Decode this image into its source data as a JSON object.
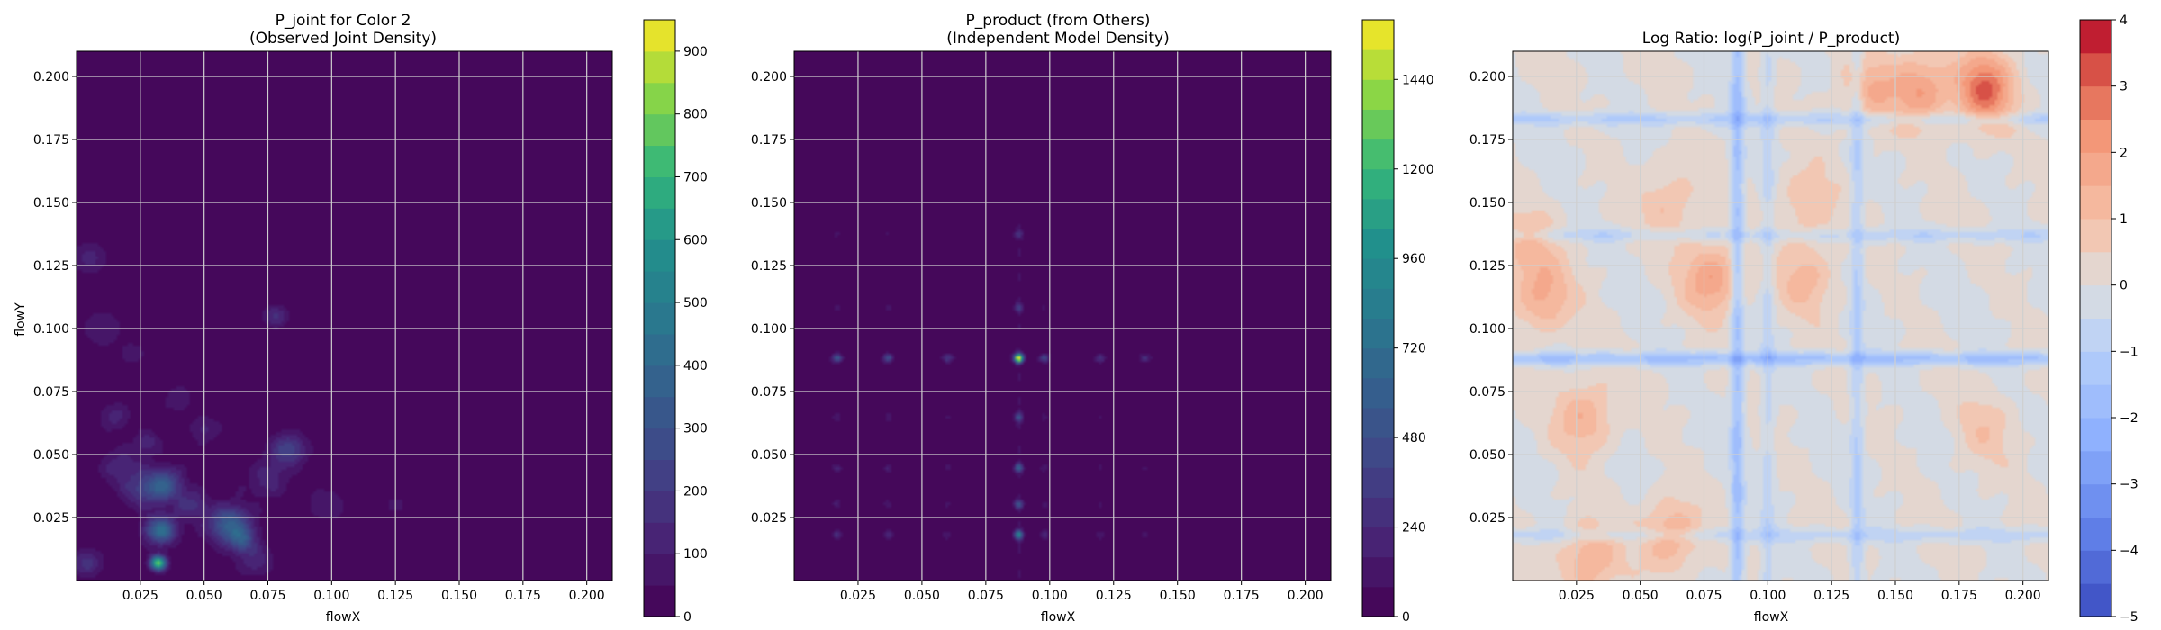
{
  "figure": {
    "background": "#ffffff"
  },
  "chart_data": [
    {
      "type": "heatmap",
      "title_line1": "P_joint for Color 2",
      "title_line2": "(Observed Joint Density)",
      "xlabel": "flowX",
      "ylabel": "flowY",
      "xlim": [
        0,
        0.21
      ],
      "ylim": [
        0,
        0.21
      ],
      "xticks": [
        "0.025",
        "0.050",
        "0.075",
        "0.100",
        "0.125",
        "0.150",
        "0.175",
        "0.200"
      ],
      "yticks": [
        "0.025",
        "0.050",
        "0.075",
        "0.100",
        "0.125",
        "0.150",
        "0.175",
        "0.200"
      ],
      "grid": true,
      "colormap": "viridis",
      "background_color": "#440154",
      "colorbar": {
        "min": 0,
        "max": 950,
        "ticks": [
          "0",
          "100",
          "200",
          "300",
          "400",
          "500",
          "600",
          "700",
          "800",
          "900"
        ],
        "tick_values": [
          0,
          100,
          200,
          300,
          400,
          500,
          600,
          700,
          800,
          900
        ],
        "levels": 19
      },
      "peaks": [
        {
          "x": 0.032,
          "y": 0.007,
          "value": 760
        },
        {
          "x": 0.033,
          "y": 0.02,
          "value": 420
        },
        {
          "x": 0.034,
          "y": 0.038,
          "value": 340
        },
        {
          "x": 0.06,
          "y": 0.022,
          "value": 360
        },
        {
          "x": 0.065,
          "y": 0.016,
          "value": 220
        },
        {
          "x": 0.045,
          "y": 0.03,
          "value": 160
        },
        {
          "x": 0.025,
          "y": 0.035,
          "value": 150
        },
        {
          "x": 0.018,
          "y": 0.045,
          "value": 140
        },
        {
          "x": 0.028,
          "y": 0.055,
          "value": 130
        },
        {
          "x": 0.015,
          "y": 0.065,
          "value": 120
        },
        {
          "x": 0.083,
          "y": 0.052,
          "value": 230
        },
        {
          "x": 0.075,
          "y": 0.04,
          "value": 120
        },
        {
          "x": 0.078,
          "y": 0.105,
          "value": 160
        },
        {
          "x": 0.004,
          "y": 0.007,
          "value": 170
        },
        {
          "x": 0.005,
          "y": 0.128,
          "value": 120
        },
        {
          "x": 0.01,
          "y": 0.1,
          "value": 100
        },
        {
          "x": 0.022,
          "y": 0.09,
          "value": 90
        },
        {
          "x": 0.05,
          "y": 0.06,
          "value": 110
        },
        {
          "x": 0.07,
          "y": 0.008,
          "value": 130
        },
        {
          "x": 0.098,
          "y": 0.03,
          "value": 90
        },
        {
          "x": 0.125,
          "y": 0.03,
          "value": 70
        },
        {
          "x": 0.04,
          "y": 0.072,
          "value": 90
        }
      ]
    },
    {
      "type": "heatmap",
      "title_line1": "P_product (from Others)",
      "title_line2": "(Independent Model Density)",
      "xlabel": "flowX",
      "ylabel": "",
      "xlim": [
        0,
        0.21
      ],
      "ylim": [
        0,
        0.21
      ],
      "xticks": [
        "0.025",
        "0.050",
        "0.075",
        "0.100",
        "0.125",
        "0.150",
        "0.175",
        "0.200"
      ],
      "yticks": [
        "0.025",
        "0.050",
        "0.075",
        "0.100",
        "0.125",
        "0.150",
        "0.175",
        "0.200"
      ],
      "grid": true,
      "colormap": "viridis",
      "background_color": "#440154",
      "colorbar": {
        "min": 0,
        "max": 1600,
        "ticks": [
          "0",
          "240",
          "480",
          "720",
          "960",
          "1200",
          "1440"
        ],
        "tick_values": [
          0,
          240,
          480,
          720,
          960,
          1200,
          1440
        ],
        "levels": 20
      },
      "peaks_x": [
        {
          "x": 0.017,
          "w": 0.4
        },
        {
          "x": 0.037,
          "w": 0.3
        },
        {
          "x": 0.06,
          "w": 0.25
        },
        {
          "x": 0.088,
          "w": 1.0
        },
        {
          "x": 0.098,
          "w": 0.2
        },
        {
          "x": 0.12,
          "w": 0.15
        },
        {
          "x": 0.137,
          "w": 0.12
        }
      ],
      "peaks_y": [
        {
          "y": 0.088,
          "w": 1.0
        },
        {
          "y": 0.018,
          "w": 0.6
        },
        {
          "y": 0.045,
          "w": 0.35
        },
        {
          "y": 0.065,
          "w": 0.3
        },
        {
          "y": 0.03,
          "w": 0.25
        },
        {
          "y": 0.108,
          "w": 0.18
        },
        {
          "y": 0.137,
          "w": 0.15
        }
      ]
    },
    {
      "type": "heatmap",
      "title_line1": "Log Ratio: log(P_joint / P_product)",
      "title_line2": "",
      "xlabel": "flowX",
      "ylabel": "",
      "xlim": [
        0,
        0.21
      ],
      "ylim": [
        0,
        0.21
      ],
      "xticks": [
        "0.025",
        "0.050",
        "0.075",
        "0.100",
        "0.125",
        "0.150",
        "0.175",
        "0.200"
      ],
      "yticks": [
        "0.025",
        "0.050",
        "0.075",
        "0.100",
        "0.125",
        "0.150",
        "0.175",
        "0.200"
      ],
      "grid": true,
      "colormap": "coolwarm",
      "colorbar": {
        "min": -5,
        "max": 4,
        "ticks": [
          "−5",
          "−4",
          "−3",
          "−2",
          "−1",
          "0",
          "1",
          "2",
          "3",
          "4"
        ],
        "tick_values": [
          -5,
          -4,
          -3,
          -2,
          -1,
          0,
          1,
          2,
          3,
          4
        ],
        "levels": 18
      },
      "warm_regions": [
        {
          "x": 0.185,
          "y": 0.195,
          "value": 3.0
        },
        {
          "x": 0.16,
          "y": 0.195,
          "value": 2.0
        },
        {
          "x": 0.14,
          "y": 0.195,
          "value": 1.3
        },
        {
          "x": 0.078,
          "y": 0.12,
          "value": 2.0
        },
        {
          "x": 0.012,
          "y": 0.112,
          "value": 1.6
        },
        {
          "x": 0.028,
          "y": 0.065,
          "value": 1.5
        },
        {
          "x": 0.03,
          "y": 0.008,
          "value": 1.6
        },
        {
          "x": 0.062,
          "y": 0.018,
          "value": 1.6
        },
        {
          "x": 0.062,
          "y": 0.15,
          "value": 1.0
        },
        {
          "x": 0.115,
          "y": 0.12,
          "value": 1.2
        },
        {
          "x": 0.115,
          "y": 0.15,
          "value": 1.0
        },
        {
          "x": 0.005,
          "y": 0.132,
          "value": 1.2
        },
        {
          "x": 0.185,
          "y": 0.06,
          "value": 0.8
        }
      ],
      "cool_lines_x": [
        {
          "x": 0.088,
          "value": -1.6
        },
        {
          "x": 0.135,
          "value": -1.0
        },
        {
          "x": 0.1,
          "value": -0.7
        }
      ],
      "cool_lines_y": [
        {
          "y": 0.088,
          "value": -1.6
        },
        {
          "y": 0.183,
          "value": -1.0
        },
        {
          "y": 0.137,
          "value": -0.8
        },
        {
          "y": 0.018,
          "value": -0.8
        }
      ]
    }
  ]
}
